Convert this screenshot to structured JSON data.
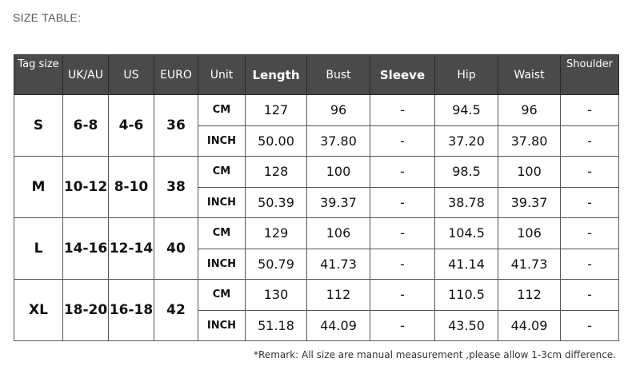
{
  "title": "SIZE TABLE:",
  "headers": [
    "Tag size",
    "UK/AU",
    "US",
    "EURO",
    "Unit",
    "Length",
    "Bust",
    "Sleeve",
    "Hip",
    "Waist",
    "Shoulder"
  ],
  "sizes": [
    {
      "tag": "S",
      "uk": "6-8",
      "us": "4-6",
      "euro": "36",
      "rows": [
        {
          "unit": "CM",
          "length": "127",
          "bust": "96",
          "sleeve": "-",
          "hip": "94.5",
          "waist": "96",
          "shoulder": "-"
        },
        {
          "unit": "INCH",
          "length": "50.00",
          "bust": "37.80",
          "sleeve": "-",
          "hip": "37.20",
          "waist": "37.80",
          "shoulder": "-"
        }
      ]
    },
    {
      "tag": "M",
      "uk": "10-12",
      "us": "8-10",
      "euro": "38",
      "rows": [
        {
          "unit": "CM",
          "length": "128",
          "bust": "100",
          "sleeve": "-",
          "hip": "98.5",
          "waist": "100",
          "shoulder": "-"
        },
        {
          "unit": "INCH",
          "length": "50.39",
          "bust": "39.37",
          "sleeve": "-",
          "hip": "38.78",
          "waist": "39.37",
          "shoulder": "-"
        }
      ]
    },
    {
      "tag": "L",
      "uk": "14-16",
      "us": "12-14",
      "euro": "40",
      "rows": [
        {
          "unit": "CM",
          "length": "129",
          "bust": "106",
          "sleeve": "-",
          "hip": "104.5",
          "waist": "106",
          "shoulder": "-"
        },
        {
          "unit": "INCH",
          "length": "50.79",
          "bust": "41.73",
          "sleeve": "-",
          "hip": "41.14",
          "waist": "41.73",
          "shoulder": "-"
        }
      ]
    },
    {
      "tag": "XL",
      "uk": "18-20",
      "us": "16-18",
      "euro": "42",
      "rows": [
        {
          "unit": "CM",
          "length": "130",
          "bust": "112",
          "sleeve": "-",
          "hip": "110.5",
          "waist": "112",
          "shoulder": "-"
        },
        {
          "unit": "INCH",
          "length": "51.18",
          "bust": "44.09",
          "sleeve": "-",
          "hip": "43.50",
          "waist": "44.09",
          "shoulder": "-"
        }
      ]
    }
  ],
  "remark": "*Remark: All size are manual measurement ,please allow 1-3cm difference.",
  "colors": {
    "header_bg": "#4a4a4a",
    "header_text": "#ffffff"
  }
}
